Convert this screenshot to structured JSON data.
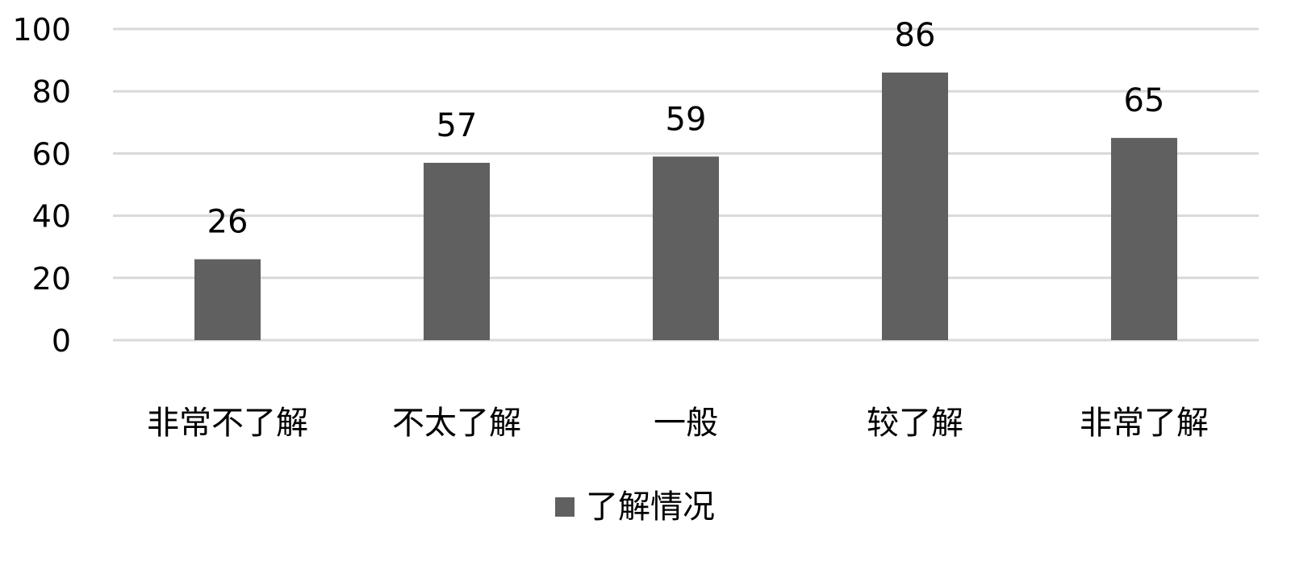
{
  "chart_data": {
    "type": "bar",
    "categories": [
      "非常不了解",
      "不太了解",
      "一般",
      "较了解",
      "非常了解"
    ],
    "series": [
      {
        "name": "了解情况",
        "values": [
          26,
          57,
          59,
          86,
          65
        ],
        "color": "#606060"
      }
    ],
    "data_labels": [
      "26",
      "57",
      "59",
      "86",
      "65"
    ],
    "yticks": [
      "0",
      "20",
      "40",
      "60",
      "80",
      "100"
    ],
    "ylim": [
      0,
      100
    ],
    "grid": true,
    "gridline_color": "#d9d9d9",
    "legend": {
      "position": "bottom",
      "label": "了解情况"
    }
  }
}
